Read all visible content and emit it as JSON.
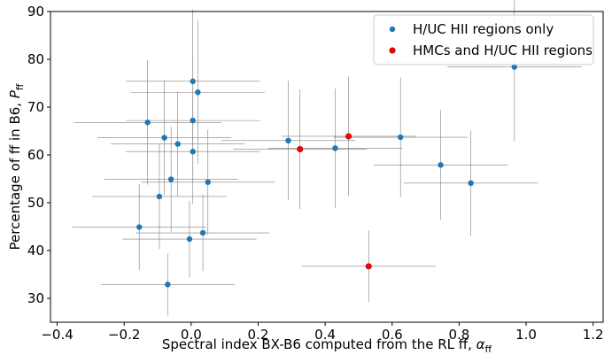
{
  "chart_data": {
    "type": "scatter",
    "xlabel": "Spectral index BX-B6 computed from the RL ff, ",
    "xlabel_symbol": "α",
    "xlabel_sub": "ff",
    "ylabel": "Percentage of ff in B6, ",
    "ylabel_symbol": "P",
    "ylabel_sub": "ff",
    "xlim": [
      -0.42,
      1.23
    ],
    "ylim": [
      25,
      90
    ],
    "xticks": [
      -0.4,
      -0.2,
      0.0,
      0.2,
      0.4,
      0.6,
      0.8,
      1.0,
      1.2
    ],
    "xtick_labels": [
      "−0.4",
      "−0.2",
      "0.0",
      "0.2",
      "0.4",
      "0.6",
      "0.8",
      "1.0",
      "1.2"
    ],
    "yticks": [
      30,
      40,
      50,
      60,
      70,
      80,
      90
    ],
    "ytick_labels": [
      "30",
      "40",
      "50",
      "60",
      "70",
      "80",
      "90"
    ],
    "grid": false,
    "legend_position": "top-right",
    "series": [
      {
        "name": "H/UC HII regions only",
        "color": "#1f77b4",
        "points": [
          {
            "x": 0.005,
            "y": 75.4,
            "xerr": 0.2,
            "yerr": 15
          },
          {
            "x": 0.02,
            "y": 73.1,
            "xerr": 0.2,
            "yerr": 15
          },
          {
            "x": -0.13,
            "y": 66.8,
            "xerr": 0.22,
            "yerr": 13
          },
          {
            "x": 0.005,
            "y": 67.2,
            "xerr": 0.2,
            "yerr": 13
          },
          {
            "x": -0.08,
            "y": 63.6,
            "xerr": 0.2,
            "yerr": 12
          },
          {
            "x": -0.04,
            "y": 62.3,
            "xerr": 0.2,
            "yerr": 11
          },
          {
            "x": 0.005,
            "y": 60.7,
            "xerr": 0.2,
            "yerr": 11
          },
          {
            "x": -0.06,
            "y": 54.9,
            "xerr": 0.2,
            "yerr": 11
          },
          {
            "x": 0.05,
            "y": 54.3,
            "xerr": 0.2,
            "yerr": 11
          },
          {
            "x": -0.095,
            "y": 51.3,
            "xerr": 0.2,
            "yerr": 11
          },
          {
            "x": -0.155,
            "y": 44.9,
            "xerr": 0.2,
            "yerr": 9
          },
          {
            "x": -0.005,
            "y": 42.4,
            "xerr": 0.2,
            "yerr": 8
          },
          {
            "x": 0.035,
            "y": 43.7,
            "xerr": 0.2,
            "yerr": 8
          },
          {
            "x": -0.07,
            "y": 32.9,
            "xerr": 0.2,
            "yerr": 6.5
          },
          {
            "x": 0.29,
            "y": 63.0,
            "xerr": 0.2,
            "yerr": 12.5
          },
          {
            "x": 0.43,
            "y": 61.4,
            "xerr": 0.2,
            "yerr": 12.5
          },
          {
            "x": 0.625,
            "y": 63.7,
            "xerr": 0.2,
            "yerr": 12.5
          },
          {
            "x": 0.745,
            "y": 57.9,
            "xerr": 0.2,
            "yerr": 11.5
          },
          {
            "x": 0.835,
            "y": 54.1,
            "xerr": 0.2,
            "yerr": 11
          },
          {
            "x": 0.965,
            "y": 78.4,
            "xerr": 0.2,
            "yerr": 15.5
          }
        ]
      },
      {
        "name": "HMCs and H/UC HII regions",
        "color": "#ff0000",
        "points": [
          {
            "x": 0.325,
            "y": 61.2,
            "xerr": 0.2,
            "yerr": 12.5
          },
          {
            "x": 0.47,
            "y": 63.9,
            "xerr": 0.2,
            "yerr": 12.5
          },
          {
            "x": 0.53,
            "y": 36.7,
            "xerr": 0.2,
            "yerr": 7.5
          }
        ]
      }
    ]
  }
}
